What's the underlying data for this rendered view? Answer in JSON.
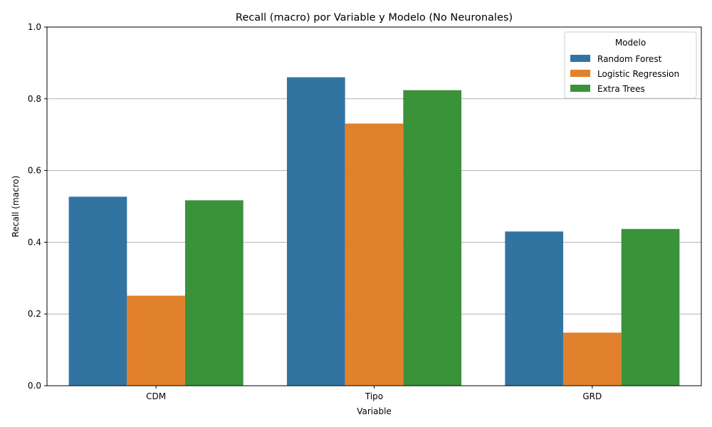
{
  "chart_data": {
    "type": "bar",
    "title": "Recall (macro) por Variable y Modelo (No Neuronales)",
    "xlabel": "Variable",
    "ylabel": "Recall (macro)",
    "categories": [
      "CDM",
      "Tipo",
      "GRD"
    ],
    "series": [
      {
        "name": "Random Forest",
        "color": "#3274a1",
        "values": [
          0.527,
          0.86,
          0.43
        ]
      },
      {
        "name": "Logistic Regression",
        "color": "#e1812c",
        "values": [
          0.251,
          0.731,
          0.148
        ]
      },
      {
        "name": "Extra Trees",
        "color": "#3a923a",
        "values": [
          0.517,
          0.824,
          0.437
        ]
      }
    ],
    "ylim": [
      0,
      1.0
    ],
    "yticks": [
      "0.0",
      "0.2",
      "0.4",
      "0.6",
      "0.8",
      "1.0"
    ],
    "grid": "y-axis",
    "legend": {
      "title": "Modelo",
      "placement": "top-right"
    }
  }
}
